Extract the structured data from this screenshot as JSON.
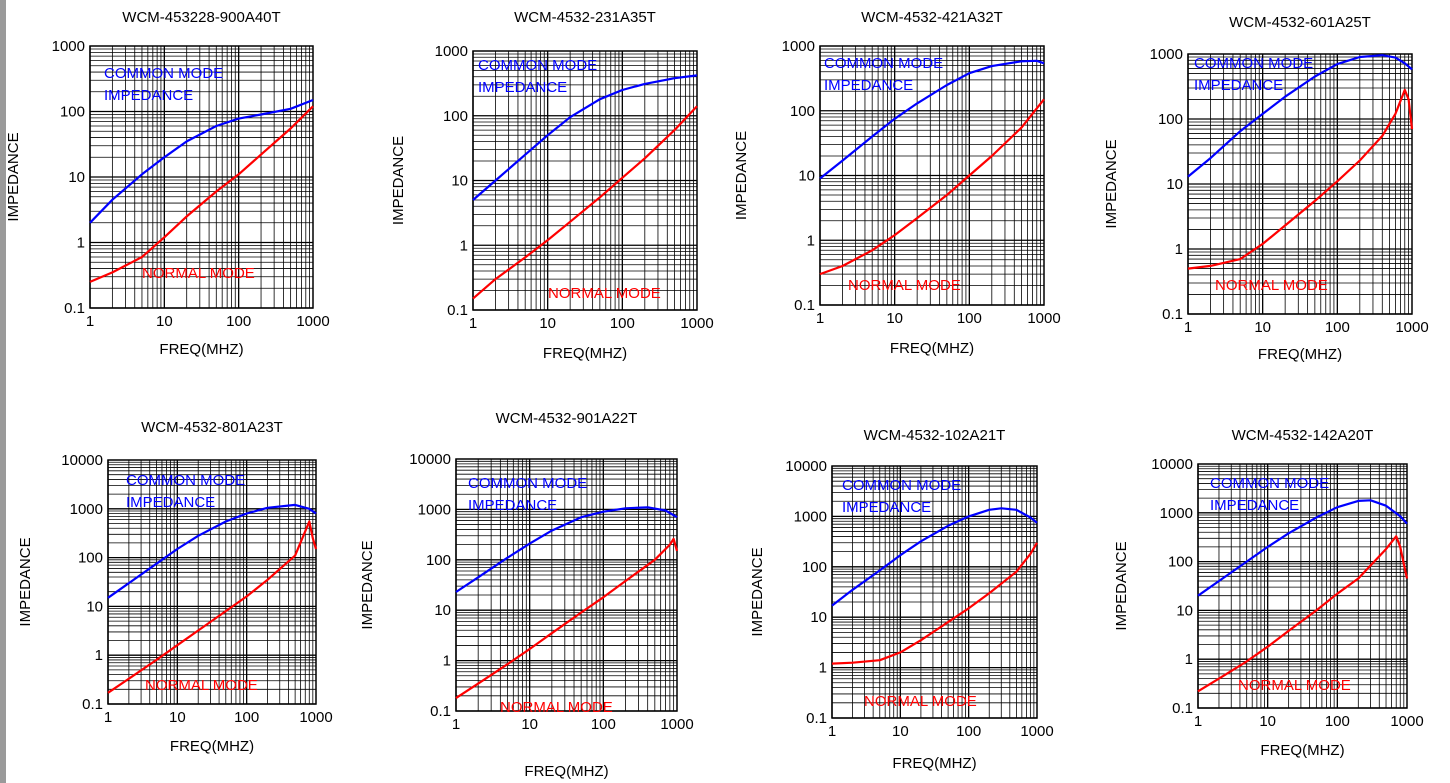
{
  "colors": {
    "common_mode": "#0000ff",
    "normal_mode": "#ff0000",
    "grid": "#000000",
    "left_edge": "#9a9a9a"
  },
  "chart_data": [
    {
      "type": "line",
      "title": "WCM-453228-900A40T",
      "xlabel": "FREQ(MHZ)",
      "ylabel": "IMPEDANCE",
      "xscale": "log",
      "yscale": "log",
      "xlim": [
        1,
        1000
      ],
      "ylim": [
        0.1,
        1000
      ],
      "xticks": [
        "1",
        "10",
        "100",
        "1000"
      ],
      "yticks": [
        "0.1",
        "1",
        "10",
        "100",
        "1000"
      ],
      "grid": true,
      "annotations": {
        "common": [
          "COMMON MODE",
          "IMPEDANCE"
        ],
        "normal": [
          "NORMAL MODE"
        ]
      },
      "series": [
        {
          "name": "COMMON MODE IMPEDANCE",
          "color": "#0000ff",
          "x": [
            1,
            2,
            5,
            10,
            20,
            50,
            100,
            200,
            500,
            1000
          ],
          "y": [
            2,
            4.5,
            11,
            20,
            35,
            60,
            78,
            90,
            110,
            150
          ]
        },
        {
          "name": "NORMAL MODE",
          "color": "#ff0000",
          "x": [
            1,
            2,
            5,
            10,
            20,
            50,
            100,
            200,
            500,
            1000
          ],
          "y": [
            0.25,
            0.35,
            0.6,
            1.2,
            2.5,
            6,
            11,
            22,
            55,
            120
          ]
        }
      ]
    },
    {
      "type": "line",
      "title": "WCM-4532-231A35T",
      "xlabel": "FREQ(MHZ)",
      "ylabel": "IMPEDANCE",
      "xscale": "log",
      "yscale": "log",
      "xlim": [
        1,
        1000
      ],
      "ylim": [
        0.1,
        1000
      ],
      "xticks": [
        "1",
        "10",
        "100",
        "1000"
      ],
      "yticks": [
        "0.1",
        "1",
        "10",
        "100",
        "1000"
      ],
      "grid": true,
      "annotations": {
        "common": [
          "COMMON MODE",
          "IMPEDANCE"
        ],
        "normal": [
          "NORMAL MODE"
        ]
      },
      "series": [
        {
          "name": "COMMON MODE IMPEDANCE",
          "color": "#0000ff",
          "x": [
            1,
            2,
            5,
            10,
            20,
            50,
            100,
            200,
            500,
            1000
          ],
          "y": [
            5,
            10,
            25,
            50,
            95,
            180,
            250,
            310,
            380,
            420
          ]
        },
        {
          "name": "NORMAL MODE",
          "color": "#ff0000",
          "x": [
            1,
            2,
            5,
            10,
            20,
            50,
            100,
            200,
            500,
            1000
          ],
          "y": [
            0.15,
            0.3,
            0.65,
            1.2,
            2.3,
            5.5,
            11,
            22,
            60,
            140
          ]
        }
      ]
    },
    {
      "type": "line",
      "title": "WCM-4532-421A32T",
      "xlabel": "FREQ(MHZ)",
      "ylabel": "IMPEDANCE",
      "xscale": "log",
      "yscale": "log",
      "xlim": [
        1,
        1000
      ],
      "ylim": [
        0.1,
        1000
      ],
      "xticks": [
        "1",
        "10",
        "100",
        "1000"
      ],
      "yticks": [
        "0.1",
        "1",
        "10",
        "100",
        "1000"
      ],
      "grid": true,
      "annotations": {
        "common": [
          "COMMON MODE",
          "IMPEDANCE"
        ],
        "normal": [
          "NORMAL MODE"
        ]
      },
      "series": [
        {
          "name": "COMMON MODE IMPEDANCE",
          "color": "#0000ff",
          "x": [
            1,
            2,
            5,
            10,
            20,
            50,
            100,
            200,
            500,
            800,
            1000
          ],
          "y": [
            9,
            17,
            40,
            75,
            130,
            250,
            380,
            490,
            580,
            590,
            540
          ]
        },
        {
          "name": "NORMAL MODE",
          "color": "#ff0000",
          "x": [
            1,
            2,
            5,
            10,
            20,
            50,
            100,
            200,
            500,
            1000
          ],
          "y": [
            0.3,
            0.4,
            0.7,
            1.2,
            2.2,
            5,
            10,
            20,
            55,
            150
          ]
        }
      ]
    },
    {
      "type": "line",
      "title": "WCM-4532-601A25T",
      "xlabel": "FREQ(MHZ)",
      "ylabel": "IMPEDANCE",
      "xscale": "log",
      "yscale": "log",
      "xlim": [
        1,
        1000
      ],
      "ylim": [
        0.1,
        1000
      ],
      "xticks": [
        "1",
        "10",
        "100",
        "1000"
      ],
      "yticks": [
        "0.1",
        "1",
        "10",
        "100",
        "1000"
      ],
      "grid": true,
      "annotations": {
        "common": [
          "COMMON MODE",
          "IMPEDANCE"
        ],
        "normal": [
          "NORMAL MODE"
        ]
      },
      "series": [
        {
          "name": "COMMON MODE IMPEDANCE",
          "color": "#0000ff",
          "x": [
            1,
            2,
            5,
            10,
            20,
            50,
            100,
            200,
            400,
            600,
            800,
            1000
          ],
          "y": [
            13,
            25,
            65,
            120,
            220,
            450,
            700,
            900,
            960,
            880,
            720,
            580
          ]
        },
        {
          "name": "NORMAL MODE",
          "color": "#ff0000",
          "x": [
            1,
            2,
            5,
            10,
            20,
            50,
            100,
            200,
            400,
            600,
            800,
            900,
            1000
          ],
          "y": [
            0.5,
            0.55,
            0.7,
            1.2,
            2.3,
            5.5,
            11,
            23,
            55,
            120,
            280,
            200,
            70
          ]
        }
      ]
    },
    {
      "type": "line",
      "title": "WCM-4532-801A23T",
      "xlabel": "FREQ(MHZ)",
      "ylabel": "IMPEDANCE",
      "xscale": "log",
      "yscale": "log",
      "xlim": [
        1,
        1000
      ],
      "ylim": [
        0.1,
        10000
      ],
      "xticks": [
        "1",
        "10",
        "100",
        "1000"
      ],
      "yticks": [
        "0.1",
        "1",
        "10",
        "100",
        "1000",
        "10000"
      ],
      "grid": true,
      "annotations": {
        "common": [
          "COMMON MODE",
          "IMPEDANCE"
        ],
        "normal": [
          "NORMAL MODE"
        ]
      },
      "series": [
        {
          "name": "COMMON MODE IMPEDANCE",
          "color": "#0000ff",
          "x": [
            1,
            2,
            5,
            10,
            20,
            50,
            100,
            200,
            500,
            800,
            1000
          ],
          "y": [
            15,
            30,
            75,
            150,
            280,
            550,
            800,
            1050,
            1200,
            1000,
            800
          ]
        },
        {
          "name": "NORMAL MODE",
          "color": "#ff0000",
          "x": [
            1,
            2,
            5,
            10,
            20,
            50,
            100,
            200,
            500,
            800,
            900,
            1000
          ],
          "y": [
            0.17,
            0.33,
            0.8,
            1.6,
            3.2,
            8,
            16,
            35,
            110,
            550,
            250,
            150
          ]
        }
      ]
    },
    {
      "type": "line",
      "title": "WCM-4532-901A22T",
      "xlabel": "FREQ(MHZ)",
      "ylabel": "IMPEDANCE",
      "xscale": "log",
      "yscale": "log",
      "xlim": [
        1,
        1000
      ],
      "ylim": [
        0.1,
        10000
      ],
      "xticks": [
        "1",
        "10",
        "100",
        "1000"
      ],
      "yticks": [
        "0.1",
        "1",
        "10",
        "100",
        "1000",
        "10000"
      ],
      "grid": true,
      "annotations": {
        "common": [
          "COMMON MODE",
          "IMPEDANCE"
        ],
        "normal": [
          "NORMAL MODE"
        ]
      },
      "series": [
        {
          "name": "COMMON MODE IMPEDANCE",
          "color": "#0000ff",
          "x": [
            1,
            2,
            5,
            10,
            20,
            50,
            100,
            200,
            400,
            700,
            1000
          ],
          "y": [
            23,
            45,
            110,
            210,
            380,
            700,
            900,
            1050,
            1100,
            950,
            700
          ]
        },
        {
          "name": "NORMAL MODE",
          "color": "#ff0000",
          "x": [
            1,
            2,
            5,
            10,
            20,
            50,
            100,
            200,
            500,
            800,
            900,
            1000
          ],
          "y": [
            0.18,
            0.35,
            0.85,
            1.7,
            3.5,
            9,
            18,
            38,
            100,
            200,
            260,
            150
          ]
        }
      ]
    },
    {
      "type": "line",
      "title": "WCM-4532-102A21T",
      "xlabel": "FREQ(MHZ)",
      "ylabel": "IMPEDANCE",
      "xscale": "log",
      "yscale": "log",
      "xlim": [
        1,
        1000
      ],
      "ylim": [
        0.1,
        10000
      ],
      "xticks": [
        "1",
        "10",
        "100",
        "1000"
      ],
      "yticks": [
        "0.1",
        "1",
        "10",
        "100",
        "1000",
        "10000"
      ],
      "grid": true,
      "annotations": {
        "common": [
          "COMMON MODE",
          "IMPEDANCE"
        ],
        "normal": [
          "NORMAL MODE"
        ]
      },
      "series": [
        {
          "name": "COMMON MODE IMPEDANCE",
          "color": "#0000ff",
          "x": [
            1,
            2,
            5,
            10,
            20,
            50,
            100,
            200,
            300,
            500,
            800,
            1000
          ],
          "y": [
            17,
            35,
            85,
            170,
            320,
            650,
            1000,
            1350,
            1450,
            1350,
            950,
            750
          ]
        },
        {
          "name": "NORMAL MODE",
          "color": "#ff0000",
          "x": [
            1,
            2,
            5,
            10,
            20,
            50,
            100,
            200,
            500,
            800,
            1000
          ],
          "y": [
            1.2,
            1.25,
            1.4,
            2,
            3.5,
            8,
            15,
            30,
            80,
            180,
            300
          ]
        }
      ]
    },
    {
      "type": "line",
      "title": "WCM-4532-142A20T",
      "xlabel": "FREQ(MHZ)",
      "ylabel": "IMPEDANCE",
      "xscale": "log",
      "yscale": "log",
      "xlim": [
        1,
        1000
      ],
      "ylim": [
        0.1,
        10000
      ],
      "xticks": [
        "1",
        "10",
        "100",
        "1000"
      ],
      "yticks": [
        "0.1",
        "1",
        "10",
        "100",
        "1000",
        "10000"
      ],
      "grid": true,
      "annotations": {
        "common": [
          "COMMON MODE",
          "IMPEDANCE"
        ],
        "normal": [
          "NORMAL MODE"
        ]
      },
      "series": [
        {
          "name": "COMMON MODE IMPEDANCE",
          "color": "#0000ff",
          "x": [
            1,
            2,
            5,
            10,
            20,
            50,
            100,
            200,
            300,
            500,
            800,
            1000
          ],
          "y": [
            20,
            40,
            100,
            200,
            380,
            800,
            1300,
            1750,
            1800,
            1400,
            850,
            600
          ]
        },
        {
          "name": "NORMAL MODE",
          "color": "#ff0000",
          "x": [
            1,
            2,
            5,
            10,
            20,
            50,
            100,
            200,
            500,
            700,
            800,
            900,
            1000
          ],
          "y": [
            0.22,
            0.4,
            0.9,
            1.8,
            3.8,
            10,
            22,
            45,
            180,
            330,
            200,
            90,
            45
          ]
        }
      ]
    }
  ]
}
